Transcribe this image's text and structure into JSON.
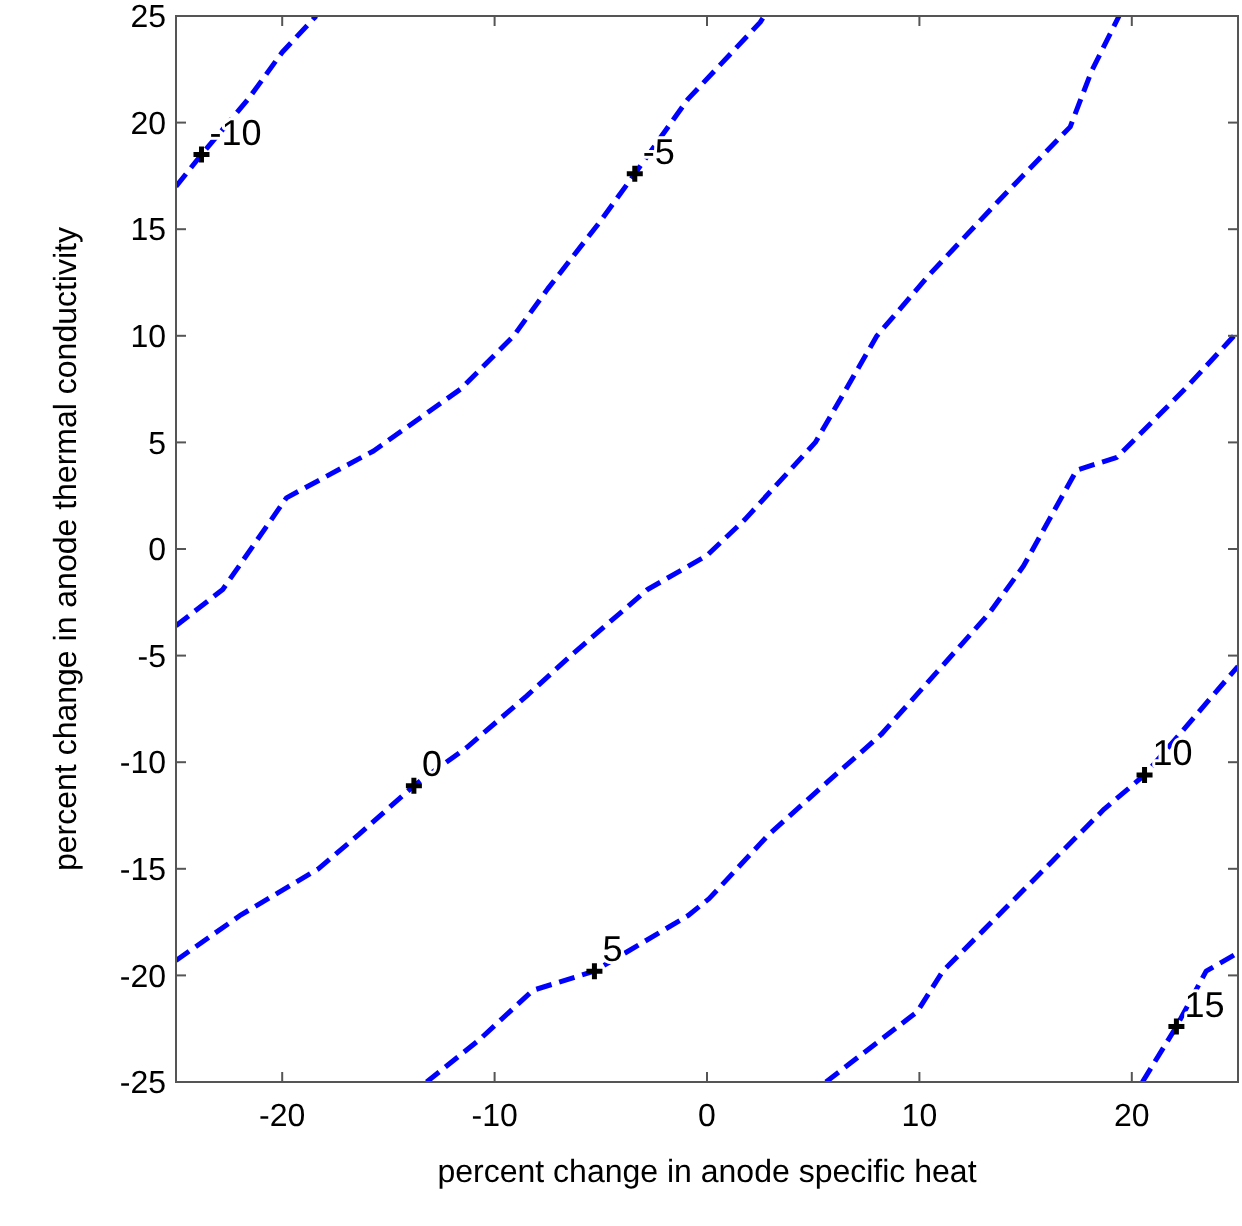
{
  "chart_data": {
    "type": "line",
    "xlabel": "percent change in anode specific heat",
    "ylabel": "percent change in anode thermal conductivity",
    "xlim": [
      -25,
      25
    ],
    "ylim": [
      -25,
      25
    ],
    "xticks": [
      -20,
      -10,
      0,
      10,
      20
    ],
    "yticks": [
      -25,
      -20,
      -15,
      -10,
      -5,
      0,
      5,
      10,
      15,
      20,
      25
    ],
    "grid": false,
    "marker": "none",
    "line_style": "dashed",
    "series": [
      {
        "color": "#0000ff",
        "x": [
          -25,
          -23.8,
          -21.6,
          -20,
          -18.5,
          -18.4
        ],
        "values": [
          17.0,
          18.5,
          21.1,
          23.3,
          24.9,
          25
        ]
      },
      {
        "color": "#0000ff",
        "x": [
          -25,
          -22.8,
          -19.8,
          -15.7,
          -11.6,
          -9.1,
          -7.5,
          -5,
          -3.4,
          -0.9,
          2.5,
          2.7
        ],
        "values": [
          -3.6,
          -1.9,
          2.4,
          4.6,
          7.5,
          10.0,
          12.2,
          15.4,
          17.6,
          21.1,
          24.7,
          25
        ]
      },
      {
        "color": "#0000ff",
        "x": [
          -25,
          -22,
          -18.3,
          -16.4,
          -13.8,
          -11.3,
          -8.5,
          -6.3,
          -2.8,
          0,
          1.8,
          5.1,
          8,
          10.5,
          13.7,
          17.1,
          18.1,
          19.4
        ],
        "values": [
          -19.3,
          -17.2,
          -15,
          -13.4,
          -11.1,
          -9.3,
          -6.9,
          -4.9,
          -1.9,
          -0.3,
          1.4,
          5,
          10,
          12.9,
          16.3,
          19.8,
          22.4,
          25
        ]
      },
      {
        "color": "#0000ff",
        "x": [
          -13.2,
          -10.7,
          -8.2,
          -5.3,
          -0.9,
          0.1,
          2.9,
          5.7,
          8.2,
          10.8,
          13.3,
          14.9,
          17.4,
          19.3,
          22.5,
          25
        ],
        "values": [
          -25,
          -23,
          -20.7,
          -19.8,
          -17.2,
          -16.4,
          -13.4,
          -10.9,
          -8.7,
          -5.8,
          -3,
          -0.8,
          3.7,
          4.3,
          7.5,
          10.2
        ]
      },
      {
        "color": "#0000ff",
        "x": [
          5.6,
          9.9,
          11.1,
          13,
          16.2,
          18.7,
          20.6,
          22.5,
          25
        ],
        "values": [
          -25,
          -21.7,
          -19.8,
          -17.9,
          -14.7,
          -12.2,
          -10.6,
          -8.4,
          -5.5
        ]
      },
      {
        "color": "#0000ff",
        "x": [
          20.5,
          22.1,
          23.5,
          24.9
        ],
        "values": [
          -25,
          -22.4,
          -19.8,
          -19
        ]
      }
    ],
    "annotations": [
      {
        "text": "-10",
        "x": -23.8,
        "y": 18.5
      },
      {
        "text": "-5",
        "x": -3.4,
        "y": 17.6
      },
      {
        "text": "0",
        "x": -13.8,
        "y": -11.1
      },
      {
        "text": "5",
        "x": -5.3,
        "y": -19.8
      },
      {
        "text": "10",
        "x": 20.6,
        "y": -10.6
      },
      {
        "text": "15",
        "x": 22.1,
        "y": -22.4
      }
    ]
  }
}
